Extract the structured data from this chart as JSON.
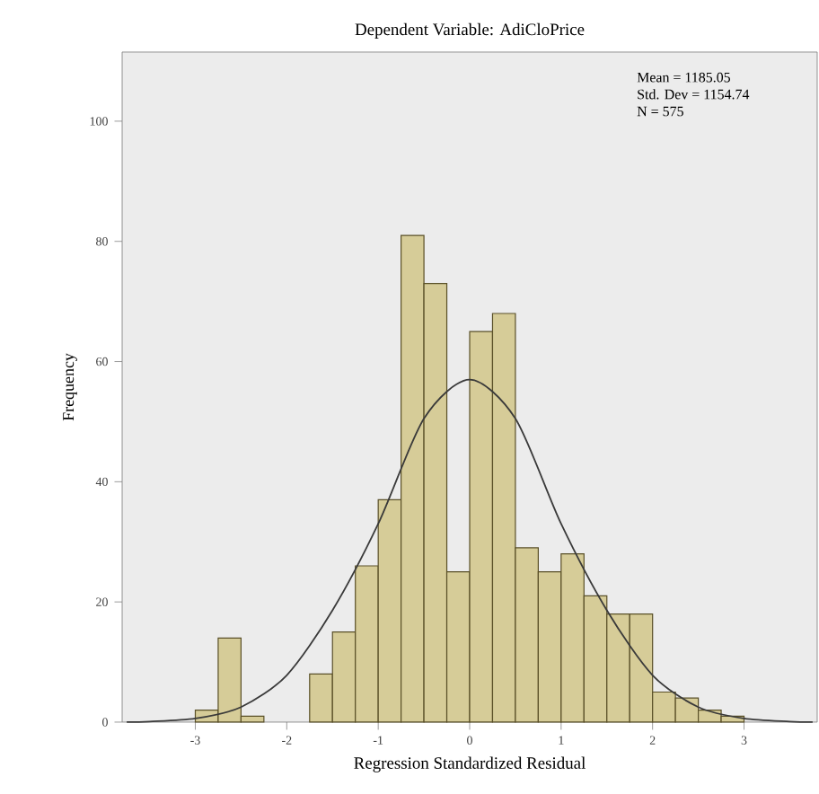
{
  "chart_data": {
    "type": "histogram",
    "title": "Dependent Variable: AdiCloPrice",
    "xlabel": "Regression Standardized Residual",
    "ylabel": "Frequency",
    "bins": [
      -3,
      -2.75,
      -2.5,
      -2.25,
      -2,
      -1.75,
      -1.5,
      -1.25,
      -1,
      -0.75,
      -0.5,
      -0.25,
      0,
      0.25,
      0.5,
      0.75,
      1,
      1.25,
      1.5,
      1.75,
      2,
      2.25,
      2.5,
      2.75,
      3
    ],
    "values": [
      2,
      14,
      1,
      0,
      0,
      8,
      15,
      26,
      37,
      81,
      73,
      25,
      65,
      68,
      29,
      25,
      28,
      21,
      18,
      18,
      5,
      4,
      2,
      1
    ],
    "color": "#d6cc98",
    "series": [
      {
        "type": "line",
        "color": "#3a3a3a",
        "x": [
          -3.75,
          -3.5,
          -3,
          -2.5,
          -2,
          -1.5,
          -1,
          -0.5,
          0,
          0.5,
          1,
          1.5,
          2,
          2.5,
          3,
          3.5,
          3.75
        ],
        "values": [
          0,
          0.1,
          0.6,
          2.5,
          7.8,
          18.6,
          33,
          50.5,
          57,
          50.5,
          33,
          18.6,
          7.8,
          2.5,
          0.6,
          0.1,
          0
        ]
      }
    ],
    "xlim": [
      -3.8,
      3.8
    ],
    "ylim": [
      0,
      111.5
    ],
    "xticks": [
      -3,
      -2,
      -1,
      0,
      1,
      2,
      3
    ],
    "yticks": [
      0,
      20,
      40,
      60,
      80,
      100
    ],
    "annotations": [
      "Mean = 1185.05",
      "Std. Dev = 1154.74",
      "N = 575"
    ]
  }
}
